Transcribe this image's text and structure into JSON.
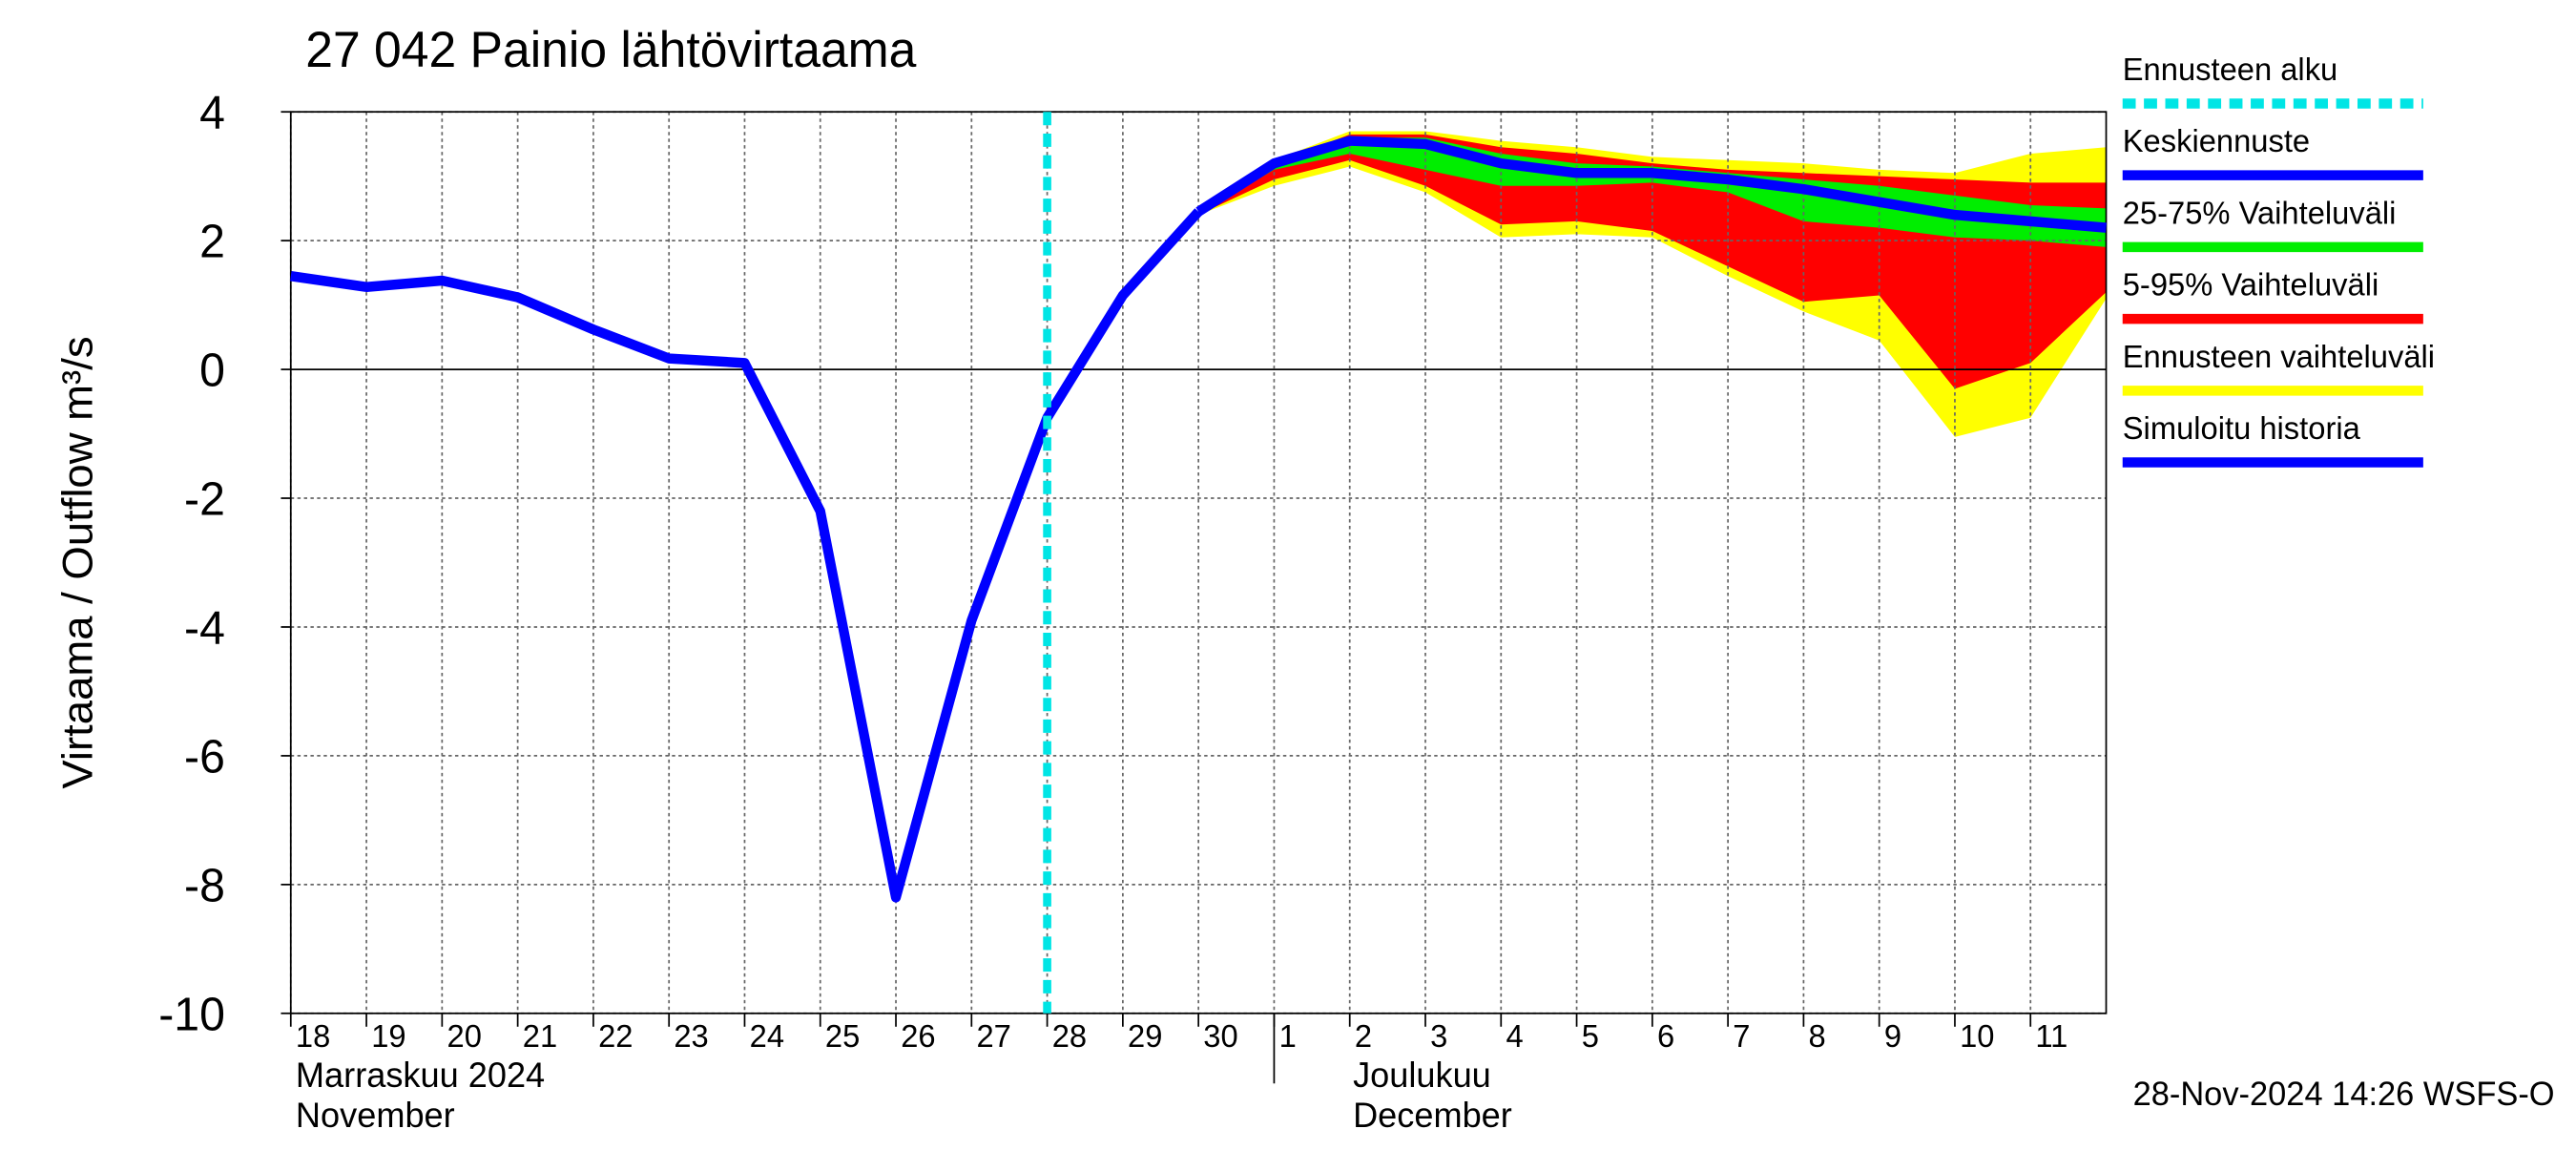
{
  "chart_data": {
    "type": "line",
    "title": "27 042 Painio lähtövirtaama",
    "ylabel": "Virtaama / Outflow    m³/s",
    "ylim": [
      -10,
      4
    ],
    "yticks": [
      -10,
      -8,
      -6,
      -4,
      -2,
      0,
      2,
      4
    ],
    "xlim": [
      "2024-11-18",
      "2024-12-12"
    ],
    "xticks": [
      {
        "value": "2024-11-18",
        "label": "18"
      },
      {
        "value": "2024-11-19",
        "label": "19"
      },
      {
        "value": "2024-11-20",
        "label": "20"
      },
      {
        "value": "2024-11-21",
        "label": "21"
      },
      {
        "value": "2024-11-22",
        "label": "22"
      },
      {
        "value": "2024-11-23",
        "label": "23"
      },
      {
        "value": "2024-11-24",
        "label": "24"
      },
      {
        "value": "2024-11-25",
        "label": "25"
      },
      {
        "value": "2024-11-26",
        "label": "26"
      },
      {
        "value": "2024-11-27",
        "label": "27"
      },
      {
        "value": "2024-11-28",
        "label": "28"
      },
      {
        "value": "2024-11-29",
        "label": "29"
      },
      {
        "value": "2024-11-30",
        "label": "30"
      },
      {
        "value": "2024-12-01",
        "label": "1"
      },
      {
        "value": "2024-12-02",
        "label": "2"
      },
      {
        "value": "2024-12-03",
        "label": "3"
      },
      {
        "value": "2024-12-04",
        "label": "4"
      },
      {
        "value": "2024-12-05",
        "label": "5"
      },
      {
        "value": "2024-12-06",
        "label": "6"
      },
      {
        "value": "2024-12-07",
        "label": "7"
      },
      {
        "value": "2024-12-08",
        "label": "8"
      },
      {
        "value": "2024-12-09",
        "label": "9"
      },
      {
        "value": "2024-12-10",
        "label": "10"
      },
      {
        "value": "2024-12-11",
        "label": "11"
      }
    ],
    "month_labels": [
      {
        "x": "2024-11-18",
        "lines": [
          "Marraskuu 2024",
          "November"
        ]
      },
      {
        "x": "2024-12-01",
        "lines": [
          "Joulukuu",
          "December"
        ]
      }
    ],
    "grid": true,
    "forecast_start": {
      "name": "Ennusteen alku",
      "x": "2024-11-28",
      "color": "#00e5e5"
    },
    "series": [
      {
        "name": "Keskiennuste",
        "color": "#0000ff",
        "x": [
          "2024-11-30",
          "2024-12-01",
          "2024-12-02",
          "2024-12-03",
          "2024-12-04",
          "2024-12-05",
          "2024-12-06",
          "2024-12-07",
          "2024-12-08",
          "2024-12-09",
          "2024-12-10",
          "2024-12-11",
          "2024-12-12"
        ],
        "values": [
          2.45,
          3.2,
          3.55,
          3.5,
          3.2,
          3.05,
          3.05,
          2.95,
          2.8,
          2.6,
          2.4,
          2.3,
          2.2
        ]
      },
      {
        "name": "Simuloitu historia",
        "color": "#0000ff",
        "x": [
          "2024-11-18",
          "2024-11-19",
          "2024-11-20",
          "2024-11-21",
          "2024-11-22",
          "2024-11-23",
          "2024-11-24",
          "2024-11-25",
          "2024-11-26",
          "2024-11-27",
          "2024-11-28",
          "2024-11-29",
          "2024-11-30"
        ],
        "values": [
          1.45,
          1.28,
          1.38,
          1.12,
          0.62,
          0.17,
          0.1,
          -2.2,
          -8.2,
          -3.9,
          -0.75,
          1.15,
          2.45
        ]
      }
    ],
    "bands": [
      {
        "name": "25-75% Vaihteluväli",
        "color": "#00ee00",
        "x": [
          "2024-11-30",
          "2024-12-01",
          "2024-12-02",
          "2024-12-03",
          "2024-12-04",
          "2024-12-05",
          "2024-12-06",
          "2024-12-07",
          "2024-12-08",
          "2024-12-09",
          "2024-12-10",
          "2024-12-11",
          "2024-12-12"
        ],
        "upper": [
          2.45,
          3.2,
          3.6,
          3.6,
          3.35,
          3.2,
          3.15,
          3.05,
          2.95,
          2.85,
          2.7,
          2.55,
          2.5
        ],
        "lower": [
          2.4,
          3.1,
          3.35,
          3.1,
          2.85,
          2.85,
          2.9,
          2.75,
          2.3,
          2.2,
          2.05,
          2.0,
          1.9
        ]
      },
      {
        "name": "5-95% Vaihteluväli",
        "color": "#ff0000",
        "x": [
          "2024-11-30",
          "2024-12-01",
          "2024-12-02",
          "2024-12-03",
          "2024-12-04",
          "2024-12-05",
          "2024-12-06",
          "2024-12-07",
          "2024-12-08",
          "2024-12-09",
          "2024-12-10",
          "2024-12-11",
          "2024-12-12"
        ],
        "upper": [
          2.45,
          3.2,
          3.65,
          3.65,
          3.45,
          3.35,
          3.2,
          3.1,
          3.05,
          3.0,
          2.95,
          2.9,
          2.9
        ],
        "lower": [
          2.4,
          2.95,
          3.25,
          2.85,
          2.25,
          2.3,
          2.15,
          1.6,
          1.05,
          1.15,
          -0.3,
          0.1,
          1.2
        ]
      },
      {
        "name": "Ennusteen vaihteluväli",
        "color": "#ffff00",
        "x": [
          "2024-11-30",
          "2024-12-01",
          "2024-12-02",
          "2024-12-03",
          "2024-12-04",
          "2024-12-05",
          "2024-12-06",
          "2024-12-07",
          "2024-12-08",
          "2024-12-09",
          "2024-12-10",
          "2024-12-11",
          "2024-12-12"
        ],
        "upper": [
          2.45,
          3.25,
          3.7,
          3.7,
          3.55,
          3.45,
          3.3,
          3.25,
          3.2,
          3.1,
          3.05,
          3.35,
          3.45
        ],
        "lower": [
          2.4,
          2.85,
          3.15,
          2.75,
          2.05,
          2.1,
          2.05,
          1.45,
          0.9,
          0.45,
          -1.05,
          -0.75,
          1.1
        ]
      }
    ],
    "timestamp": "28-Nov-2024 14:26 WSFS-O"
  }
}
